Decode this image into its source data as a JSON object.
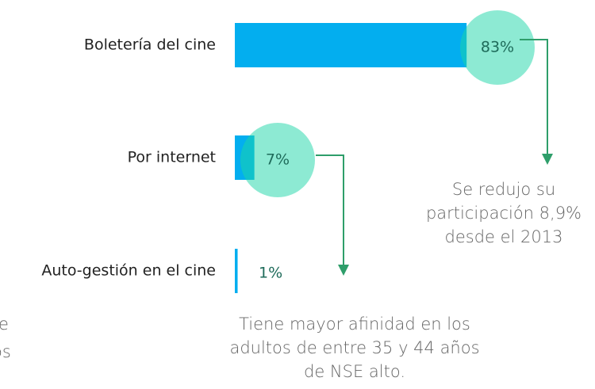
{
  "chart_data": {
    "type": "bar",
    "orientation": "horizontal",
    "categories": [
      "Boletería del cine",
      "Por internet",
      "Auto-gestión en el cine"
    ],
    "values": [
      83,
      7,
      1
    ],
    "value_labels": [
      "83%",
      "7%",
      "1%"
    ],
    "color": "#03aeef",
    "highlight_color": "#1bd6a8",
    "arrow_color": "#2e9e6a",
    "annotations": [
      [
        "Se redujo su",
        "participación 8,9%",
        "desde el 2013"
      ],
      [
        "Tiene mayor afinidad en los",
        "adultos de entre 35 y 44 años",
        "de NSE alto."
      ]
    ],
    "fragments": [
      "e",
      "os"
    ]
  }
}
